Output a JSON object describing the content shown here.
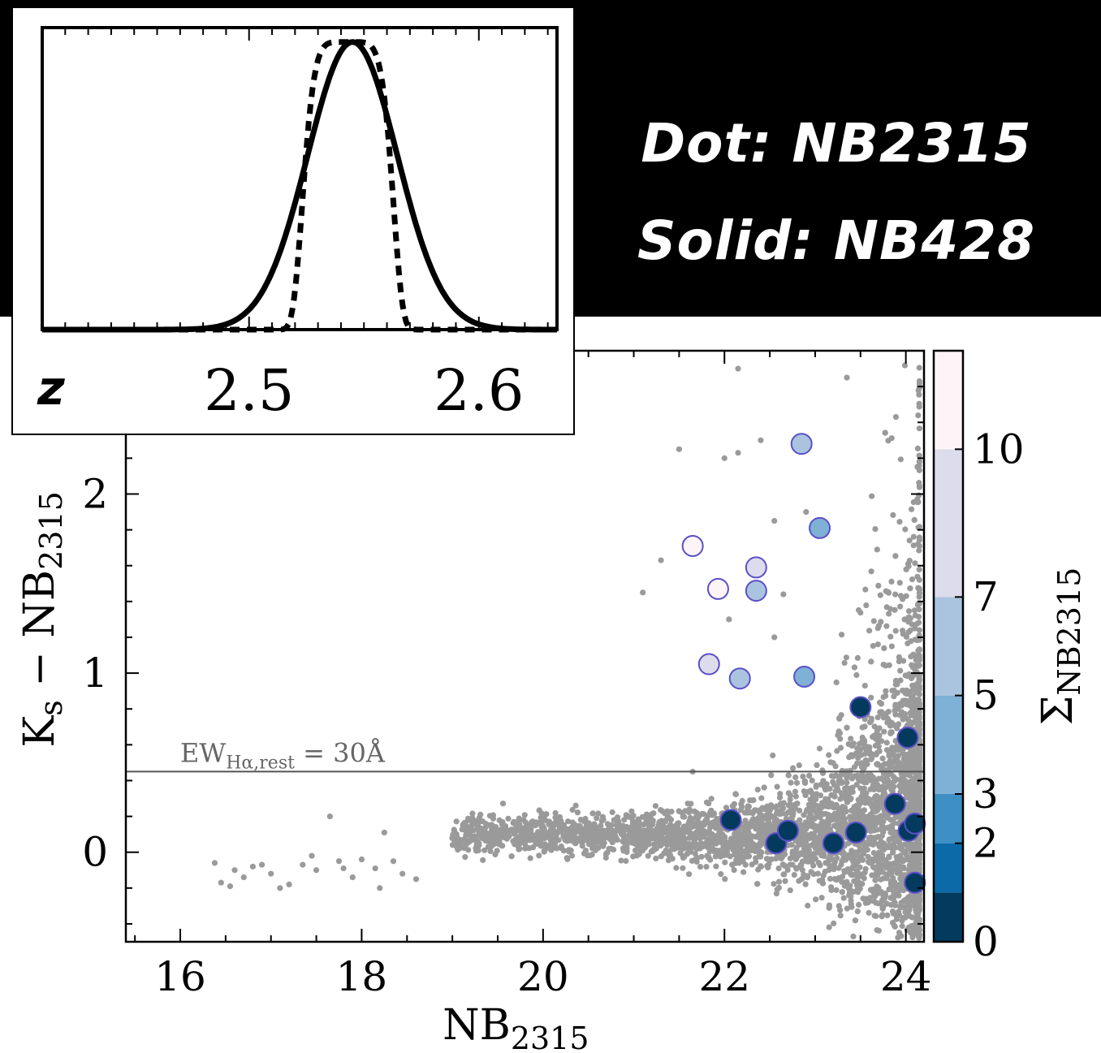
{
  "legend": {
    "dot": "Dot: NB2315",
    "solid": "Solid: NB428"
  },
  "inset": {
    "xlabel": "z",
    "xticks": [
      2.5,
      2.6
    ],
    "xticklabels": [
      "2.5",
      "2.6"
    ],
    "xlim": [
      2.41,
      2.634
    ],
    "ylim": [
      0,
      1.05
    ]
  },
  "chart_data": {
    "type": "scatter",
    "title": "",
    "xlabel": "NB",
    "xlabel_sub": "2315",
    "ylabel": "K",
    "ylabel_sub_s": "s",
    "ylabel_rest": " − NB",
    "ylabel_sub": "2315",
    "xlim": [
      15.4,
      24.2
    ],
    "ylim": [
      -0.5,
      2.8
    ],
    "xticks": [
      16,
      18,
      20,
      22,
      24
    ],
    "xticklabels": [
      "16",
      "18",
      "20",
      "22",
      "24"
    ],
    "yticks": [
      0,
      1,
      2
    ],
    "yticklabels": [
      "0",
      "1",
      "2"
    ],
    "hline": {
      "y": 0.45,
      "label": "EW",
      "label_sub": "Hα,rest",
      "label_rest": " = 30Å"
    },
    "colorbar": {
      "label": "Σ",
      "label_sub": "NB2315",
      "bounds": [
        0,
        1,
        2,
        3,
        5,
        7,
        10,
        12
      ],
      "ticks": [
        0,
        2,
        3,
        5,
        7,
        10
      ],
      "ticklabels": [
        "0",
        "2",
        "3",
        "5",
        "7",
        "10"
      ],
      "colors": [
        "#033a5e",
        "#0b6aa7",
        "#3d8fc4",
        "#7fb0d5",
        "#aac4df",
        "#dcdcec",
        "#fdf4f8"
      ]
    },
    "background_color": "#9a9a9a",
    "highlighted": [
      {
        "x": 22.85,
        "y": 2.28,
        "sigma": 6
      },
      {
        "x": 23.05,
        "y": 1.81,
        "sigma": 4
      },
      {
        "x": 21.65,
        "y": 1.71,
        "sigma": 11
      },
      {
        "x": 21.93,
        "y": 1.47,
        "sigma": 11
      },
      {
        "x": 22.35,
        "y": 1.59,
        "sigma": 8
      },
      {
        "x": 22.35,
        "y": 1.46,
        "sigma": 6
      },
      {
        "x": 21.83,
        "y": 1.05,
        "sigma": 8
      },
      {
        "x": 22.17,
        "y": 0.97,
        "sigma": 6
      },
      {
        "x": 22.88,
        "y": 0.98,
        "sigma": 4
      },
      {
        "x": 23.5,
        "y": 0.81,
        "sigma": 0.5
      },
      {
        "x": 24.02,
        "y": 0.64,
        "sigma": 0.5
      },
      {
        "x": 22.07,
        "y": 0.18,
        "sigma": 0.5
      },
      {
        "x": 22.57,
        "y": 0.05,
        "sigma": 0.5
      },
      {
        "x": 22.7,
        "y": 0.12,
        "sigma": 0.5
      },
      {
        "x": 23.2,
        "y": 0.05,
        "sigma": 0.5
      },
      {
        "x": 23.45,
        "y": 0.11,
        "sigma": 0.5
      },
      {
        "x": 23.88,
        "y": 0.27,
        "sigma": 0.5
      },
      {
        "x": 24.03,
        "y": 0.12,
        "sigma": 0.5
      },
      {
        "x": 24.1,
        "y": 0.16,
        "sigma": 0.5
      },
      {
        "x": 24.1,
        "y": -0.17,
        "sigma": 0.5
      }
    ],
    "sparse_points": [
      [
        16.38,
        -0.06
      ],
      [
        16.45,
        -0.17
      ],
      [
        16.6,
        -0.1
      ],
      [
        16.7,
        -0.14
      ],
      [
        16.9,
        -0.07
      ],
      [
        17.0,
        -0.12
      ],
      [
        17.2,
        -0.18
      ],
      [
        17.35,
        -0.07
      ],
      [
        17.5,
        -0.1
      ],
      [
        17.65,
        0.2
      ],
      [
        17.75,
        -0.05
      ],
      [
        17.9,
        -0.14
      ],
      [
        18.0,
        -0.04
      ],
      [
        18.15,
        -0.09
      ],
      [
        18.25,
        0.11
      ],
      [
        18.35,
        -0.05
      ],
      [
        18.45,
        -0.12
      ],
      [
        16.55,
        -0.19
      ],
      [
        17.1,
        -0.2
      ],
      [
        18.6,
        -0.15
      ],
      [
        17.45,
        -0.02
      ],
      [
        18.2,
        -0.2
      ],
      [
        16.8,
        -0.08
      ],
      [
        17.8,
        -0.09
      ],
      [
        21.65,
        0.45
      ],
      [
        21.5,
        2.25
      ],
      [
        22.55,
        1.2
      ],
      [
        22.05,
        1.3
      ],
      [
        22.4,
        2.3
      ],
      [
        22.0,
        2.2
      ],
      [
        22.15,
        2.23
      ],
      [
        23.35,
        2.65
      ],
      [
        22.15,
        2.7
      ],
      [
        21.3,
        1.63
      ],
      [
        21.1,
        1.45
      ],
      [
        21.9,
        1.08
      ],
      [
        22.65,
        1.44
      ],
      [
        22.9,
        1.9
      ],
      [
        22.55,
        1.85
      ]
    ],
    "cloud": {
      "count": 4200,
      "seed": 17,
      "x_range": [
        19.0,
        24.15
      ],
      "y_center": 0.1
    }
  }
}
